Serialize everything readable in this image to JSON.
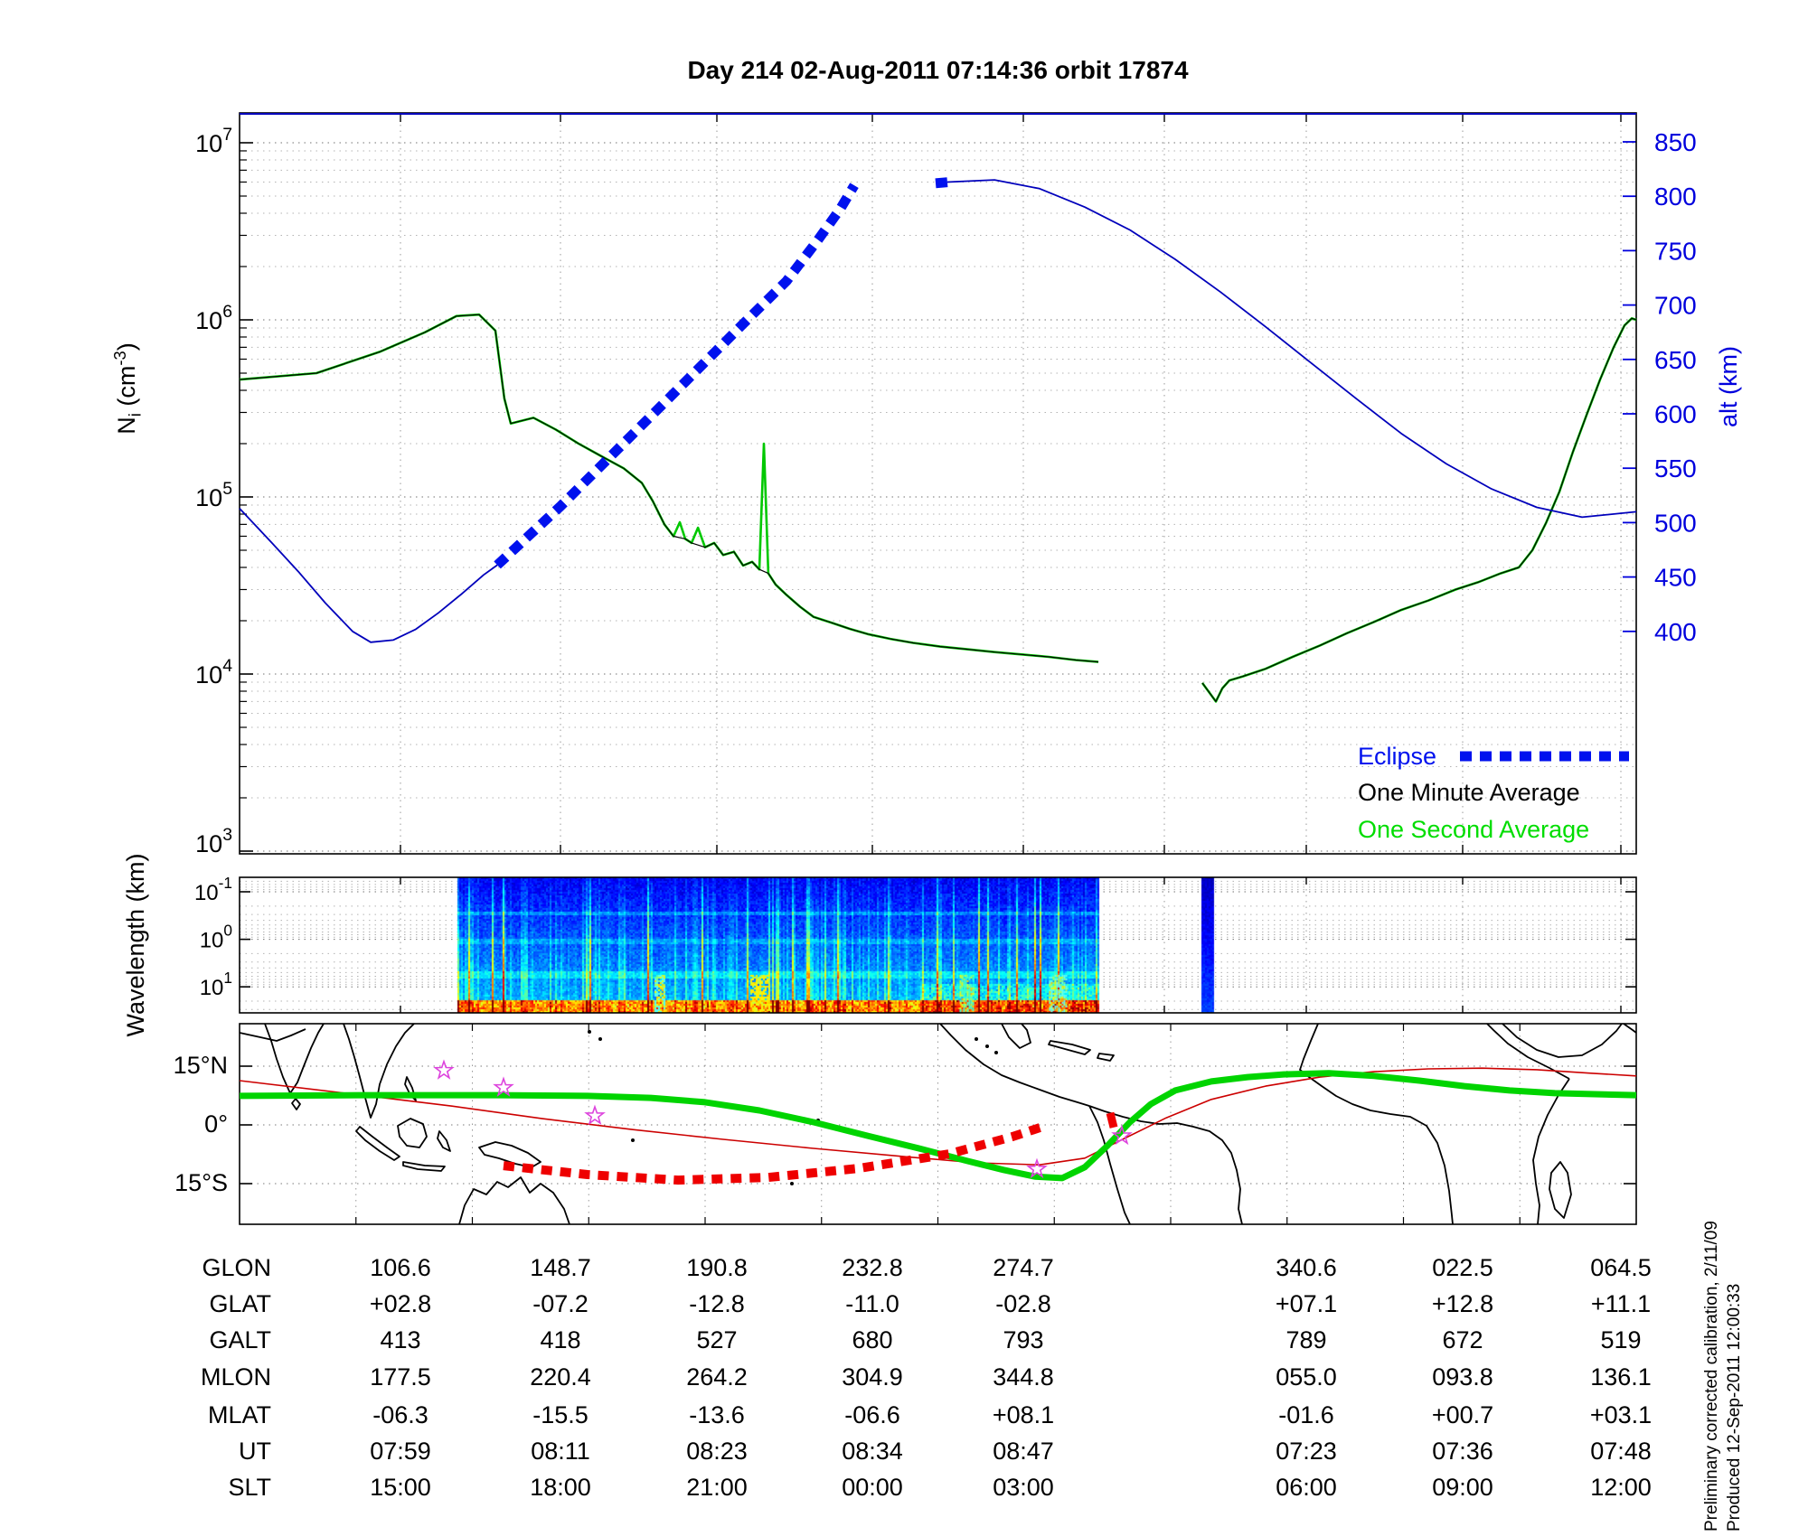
{
  "title": "Day 214  02-Aug-2011 07:14:36   orbit 17874",
  "colors": {
    "one_second_green": "#00c800",
    "one_minute_black": "#000000",
    "altitude_blue": "#0000bb",
    "eclipse_blue": "#0011ee",
    "axis_blue": "#0000dd",
    "track_green": "#00d400",
    "eclipse_track_red": "#ee0000",
    "mag_equator_red": "#cc0000",
    "star_magenta": "#dd44dd",
    "grid_dot": "#444444"
  },
  "legend": {
    "eclipse": "Eclipse",
    "one_minute": "One Minute Average",
    "one_second": "One Second Average"
  },
  "axis_labels": {
    "density": [
      {
        "t": "N"
      },
      {
        "t": "i",
        "sub": true
      },
      {
        "t": " (cm"
      },
      {
        "t": "-3",
        "sup": true
      },
      {
        "t": ")"
      }
    ],
    "altitude": "alt (km)",
    "wavelength": "Wavelength (km)"
  },
  "axis_ticks": {
    "density_exponents": [
      7,
      6,
      5,
      4,
      3
    ],
    "altitude_ticks": [
      850,
      800,
      750,
      700,
      650,
      600,
      550,
      500,
      450,
      400
    ],
    "wavelength_exponents": [
      -1,
      0,
      1
    ]
  },
  "map": {
    "lat_labels": [
      "15°N",
      "0°",
      "15°S"
    ]
  },
  "notes": {
    "line1": "Preliminary corrected calibration, 2/11/09",
    "line2": "Produced 12-Sep-2011 12:00:33"
  },
  "table": {
    "row_labels": [
      "GLON",
      "GLAT",
      "GALT",
      "MLON",
      "MLAT",
      "UT",
      "SLT"
    ],
    "rows": [
      [
        "106.6",
        "148.7",
        "190.8",
        "232.8",
        "274.7",
        "340.6",
        "022.5",
        "064.5"
      ],
      [
        "+02.8",
        "-07.2",
        "-12.8",
        "-11.0",
        "-02.8",
        "+07.1",
        "+12.8",
        "+11.1"
      ],
      [
        "413",
        "418",
        "527",
        "680",
        "793",
        "789",
        "672",
        "519"
      ],
      [
        "177.5",
        "220.4",
        "264.2",
        "304.9",
        "344.8",
        "055.0",
        "093.8",
        "136.1"
      ],
      [
        "-06.3",
        "-15.5",
        "-13.6",
        "-06.6",
        "+08.1",
        "-01.6",
        "+00.7",
        "+03.1"
      ],
      [
        "07:59",
        "08:11",
        "08:23",
        "08:34",
        "08:47",
        "07:23",
        "07:36",
        "07:48"
      ],
      [
        "15:00",
        "18:00",
        "21:00",
        "00:00",
        "03:00",
        "06:00",
        "09:00",
        "12:00"
      ]
    ]
  },
  "chart_data": [
    {
      "type": "line",
      "title": "Day 214  02-Aug-2011 07:14:36   orbit 17874",
      "ylabel_left": "Ni (cm-3)",
      "yscale_left": "log",
      "ylim_left": [
        1000,
        10000000
      ],
      "ylabel_right": "alt (km)",
      "ylim_right": [
        400,
        850
      ],
      "grid": "dotted, major and minor",
      "legend_position": "lower right, no box",
      "series": [
        {
          "name": "One Second Average",
          "axis": "left",
          "color": "#00c800",
          "points": [
            [
              0,
              460000
            ],
            [
              0.055,
              500000
            ],
            [
              0.1003,
              660000
            ],
            [
              0.1327,
              850000
            ],
            [
              0.1553,
              1050000
            ],
            [
              0.1715,
              1070000
            ],
            [
              0.1832,
              870000
            ],
            [
              0.1896,
              360000
            ],
            [
              0.1942,
              260000
            ],
            [
              0.2104,
              280000
            ],
            [
              0.2265,
              240000
            ],
            [
              0.2427,
              200000
            ],
            [
              0.2589,
              170000
            ],
            [
              0.2751,
              145000
            ],
            [
              0.288,
              120000
            ],
            [
              0.2958,
              95000
            ],
            [
              0.3042,
              70000
            ],
            [
              0.3107,
              60000
            ],
            [
              0.3152,
              72000,
              1
            ],
            [
              0.3191,
              58000
            ],
            [
              0.3236,
              55000
            ],
            [
              0.3282,
              67000,
              1
            ],
            [
              0.3333,
              52000
            ],
            [
              0.3398,
              55000
            ],
            [
              0.3463,
              47000
            ],
            [
              0.354,
              49000
            ],
            [
              0.3605,
              41000
            ],
            [
              0.367,
              43000
            ],
            [
              0.3722,
              39000
            ],
            [
              0.3754,
              200000,
              1
            ],
            [
              0.3786,
              37000
            ],
            [
              0.3838,
              32000
            ],
            [
              0.3916,
              28000
            ],
            [
              0.4013,
              24000
            ],
            [
              0.411,
              21000
            ],
            [
              0.4239,
              19500
            ],
            [
              0.4369,
              18000
            ],
            [
              0.4498,
              16800
            ],
            [
              0.466,
              15800
            ],
            [
              0.4822,
              15000
            ],
            [
              0.5016,
              14300
            ],
            [
              0.521,
              13800
            ],
            [
              0.5405,
              13300
            ],
            [
              0.5599,
              12900
            ],
            [
              0.5793,
              12500
            ],
            [
              0.5987,
              12000
            ],
            [
              0.6149,
              11700
            ],
            [
              null,
              null
            ],
            [
              0.6893,
              8900
            ],
            [
              0.699,
              7000
            ],
            [
              0.7036,
              8300
            ],
            [
              0.7087,
              9200
            ],
            [
              0.7184,
              9700
            ],
            [
              0.7346,
              10700
            ],
            [
              0.754,
              12500
            ],
            [
              0.7735,
              14500
            ],
            [
              0.7929,
              17000
            ],
            [
              0.8123,
              19700
            ],
            [
              0.8317,
              23000
            ],
            [
              0.8511,
              26000
            ],
            [
              0.8706,
              30000
            ],
            [
              0.8867,
              33000
            ],
            [
              0.9029,
              37000
            ],
            [
              0.9159,
              40000
            ],
            [
              0.9256,
              50000
            ],
            [
              0.9353,
              71000
            ],
            [
              0.945,
              107000
            ],
            [
              0.9547,
              180000
            ],
            [
              0.9644,
              290000
            ],
            [
              0.9741,
              460000
            ],
            [
              0.9838,
              700000
            ],
            [
              0.9916,
              930000
            ],
            [
              0.9968,
              1020000
            ],
            [
              1,
              1000000
            ]
          ]
        },
        {
          "name": "One Minute Average",
          "axis": "left",
          "color": "#000000",
          "note": "same curve as one-second average without narrow spikes"
        },
        {
          "name": "altitude",
          "axis": "right",
          "color": "#0000bb",
          "segments": [
            [
              [
                0,
                513
              ],
              [
                0.0227,
                482
              ],
              [
                0.0421,
                455
              ],
              [
                0.0615,
                426
              ],
              [
                0.0809,
                400
              ],
              [
                0.0939,
                390
              ],
              [
                0.11,
                392
              ],
              [
                0.1262,
                402
              ],
              [
                0.1424,
                417
              ],
              [
                0.1586,
                434
              ],
              [
                0.1748,
                452
              ],
              [
                0.1845,
                461
              ]
            ],
            [
              [
                0.5068,
                813
              ],
              [
                0.5405,
                815
              ],
              [
                0.5728,
                807
              ],
              [
                0.6052,
                790
              ],
              [
                0.6375,
                769
              ],
              [
                0.6699,
                742
              ],
              [
                0.7023,
                712
              ],
              [
                0.7346,
                680
              ],
              [
                0.767,
                647
              ],
              [
                0.7994,
                614
              ],
              [
                0.8317,
                582
              ],
              [
                0.8641,
                554
              ],
              [
                0.8964,
                531
              ],
              [
                0.9288,
                514
              ],
              [
                0.9612,
                505
              ],
              [
                1,
                510
              ]
            ]
          ]
        },
        {
          "name": "Eclipse",
          "axis": "right",
          "color": "#0011ee",
          "style": "thick dashed",
          "segments": [
            [
              [
                0.1845,
                461
              ],
              [
                0.2298,
                515
              ],
              [
                0.2751,
                573
              ],
              [
                0.3204,
                631
              ],
              [
                0.3592,
                681
              ],
              [
                0.3916,
                722
              ],
              [
                0.4142,
                760
              ],
              [
                0.4304,
                789
              ],
              [
                0.4401,
                810
              ]
            ],
            [
              [
                0.4984,
                812
              ],
              [
                0.5081,
                813
              ]
            ]
          ]
        }
      ]
    },
    {
      "type": "heatmap",
      "ylabel": "Wavelength (km)",
      "yscale": "log inverted",
      "ytick_exponents": [
        -1,
        0,
        1
      ],
      "colormap": "jet (dark blue background, cyan/yellow at long wavelengths)",
      "blocks": [
        {
          "x_start_frac": 0.1553,
          "x_end_frac": 0.6149,
          "description": "broadband irregularity spectrogram; intensity increases toward 10 km wavelengths; bright cyan band along bottom; yellow hot spot near x-frac 0.37"
        },
        {
          "x_start_frac": 0.688,
          "x_end_frac": 0.6971,
          "description": "narrow dark-blue data stripe after gap"
        }
      ],
      "hotspots": [
        {
          "xfrac": 0.372,
          "w_frac": 0.014,
          "color": "#ffee00"
        },
        {
          "xfrac": 0.3,
          "w_frac": 0.008,
          "color": "#55ffee"
        },
        {
          "xfrac": 0.52,
          "w_frac": 0.01,
          "color": "#44ffcc"
        },
        {
          "xfrac": 0.585,
          "w_frac": 0.012,
          "color": "#66ffee"
        }
      ]
    },
    {
      "type": "map",
      "lat_gridlines": [
        15,
        0,
        -15
      ],
      "ground_track_green": [
        [
          0,
          7.4
        ],
        [
          0.0874,
          7.6
        ],
        [
          0.1845,
          7.6
        ],
        [
          0.2492,
          7.4
        ],
        [
          0.2945,
          6.9
        ],
        [
          0.3333,
          5.8
        ],
        [
          0.3722,
          3.7
        ],
        [
          0.411,
          0.7
        ],
        [
          0.4498,
          -2.8
        ],
        [
          0.4887,
          -6.2
        ],
        [
          0.521,
          -9.2
        ],
        [
          0.5469,
          -11.5
        ],
        [
          0.5696,
          -13.2
        ],
        [
          0.589,
          -13.6
        ],
        [
          0.6052,
          -10.8
        ],
        [
          0.6214,
          -5.3
        ],
        [
          0.6375,
          0.7
        ],
        [
          0.6524,
          5.3
        ],
        [
          0.6699,
          8.8
        ],
        [
          0.6958,
          11.1
        ],
        [
          0.7217,
          12.2
        ],
        [
          0.7476,
          12.9
        ],
        [
          0.7799,
          13.2
        ],
        [
          0.8123,
          12.5
        ],
        [
          0.8447,
          11.3
        ],
        [
          0.877,
          9.9
        ],
        [
          0.9094,
          8.8
        ],
        [
          0.9417,
          8.1
        ],
        [
          1,
          7.6
        ]
      ],
      "eclipse_track_red_dashed": [
        [
          0.189,
          -10.4
        ],
        [
          0.2492,
          -12.7
        ],
        [
          0.3139,
          -14.1
        ],
        [
          0.3786,
          -13.4
        ],
        [
          0.4434,
          -11.1
        ],
        [
          0.5081,
          -7.4
        ],
        [
          0.5534,
          -3.0
        ],
        [
          0.5773,
          -0.2
        ]
      ],
      "eclipse_end_dash": [
        0.6246,
        1.2
      ],
      "magnetic_equator_red": [
        [
          0,
          11.3
        ],
        [
          0.0874,
          7.6
        ],
        [
          0.1521,
          4.8
        ],
        [
          0.2168,
          1.6
        ],
        [
          0.2816,
          -1.2
        ],
        [
          0.3463,
          -3.7
        ],
        [
          0.411,
          -6.0
        ],
        [
          0.4757,
          -8.1
        ],
        [
          0.5275,
          -9.7
        ],
        [
          0.5728,
          -10.2
        ],
        [
          0.6052,
          -8.5
        ],
        [
          0.6311,
          -3.9
        ],
        [
          0.6634,
          1.8
        ],
        [
          0.6958,
          6.5
        ],
        [
          0.7346,
          9.9
        ],
        [
          0.7735,
          12.2
        ],
        [
          0.8123,
          13.6
        ],
        [
          0.8511,
          14.3
        ],
        [
          0.8899,
          14.5
        ],
        [
          0.9288,
          14.1
        ],
        [
          0.9676,
          13.2
        ],
        [
          1,
          12.5
        ]
      ],
      "stars": [
        [
          0.1463,
          13.9
        ],
        [
          0.189,
          9.5
        ],
        [
          0.2544,
          2.3
        ],
        [
          0.5709,
          -11.3
        ],
        [
          0.6317,
          -2.8
        ]
      ],
      "coastlines": [
        "M265,1143 L288,1148 L306,1152 L322,1146 L338,1139",
        "M293,1133 L300,1152 L306,1172 L313,1192 L321,1210 L329,1198 L336,1180 L344,1160 L352,1143 L358,1133",
        "M327,1216 L332,1222 L328,1228 L323,1221 Z",
        "M380,1133 L386,1150 L392,1170 L398,1192 L404,1215 L410,1237 L416,1222 L420,1200 L428,1178 L438,1158 L448,1143 L458,1133",
        "M398,1247 L412,1258 L428,1270 L442,1280 L436,1284 L420,1274 L404,1262 L394,1252 Z",
        "M446,1286 L470,1290 L492,1291 L488,1296 L462,1294 L446,1290 Z",
        "M440,1246 L454,1238 L468,1244 L472,1258 L464,1270 L450,1268 L442,1258 Z",
        "M486,1252 L494,1262 L498,1274 L490,1270 L484,1260 Z",
        "M530,1270 L548,1264 L566,1268 L584,1276 L598,1286 L588,1292 L570,1288 L552,1282 L536,1278 Z",
        "M450,1192 L456,1204 L460,1218 L454,1212 L448,1200 Z",
        "M508,1355 L514,1334 L524,1316 L538,1322 L550,1308 L562,1314 L576,1303 L586,1320 L598,1310 L612,1320 L624,1338 L630,1355",
        "M1040,1133 L1052,1146 L1068,1162 L1088,1178 L1108,1190 L1128,1198 L1150,1206 L1172,1214 L1192,1220 L1205,1224",
        "M1108,1133 L1116,1148 L1128,1160 L1140,1154 L1136,1140 L1130,1133",
        "M1162,1152 L1186,1156 L1206,1162 L1200,1167 L1178,1161 L1160,1156 Z",
        "M1216,1166 L1232,1168 L1228,1174 L1214,1171 Z",
        "M1205,1224 L1214,1242 L1221,1262 L1228,1288 L1236,1316 L1244,1342 L1250,1355",
        "M1205,1224 L1222,1230 L1242,1236 L1262,1241 L1282,1244 L1302,1243 L1320,1247 L1338,1252 L1352,1262 L1362,1276 L1368,1295 L1372,1316 L1370,1338 L1374,1355",
        "M1458,1133 L1450,1152 L1442,1172 L1438,1184 L1448,1192 L1462,1202 L1478,1213 L1496,1222 L1516,1229 L1538,1233 L1560,1236 L1578,1246 L1590,1265 L1598,1290 L1603,1318 L1606,1345 L1607,1355",
        "M1736,1194 L1724,1212 L1712,1234 L1702,1258 L1696,1284 L1699,1310 L1703,1334 L1701,1355",
        "M1736,1194 L1714,1182 L1690,1170 L1668,1155 L1652,1140 L1645,1133",
        "M1662,1133 L1678,1148 L1700,1162 L1724,1170 L1750,1168 L1772,1156 L1788,1141 L1794,1133",
        "M1716,1298 L1726,1286 L1734,1298 L1738,1322 L1730,1348 L1720,1338 L1714,1316 Z",
        "M1796,1133 L1806,1140 L1810,1143"
      ],
      "island_dots": [
        [
          652,
          1142
        ],
        [
          664,
          1150
        ],
        [
          858,
          1300
        ],
        [
          876,
          1310
        ],
        [
          1080,
          1150
        ],
        [
          1092,
          1158
        ],
        [
          1102,
          1165
        ],
        [
          700,
          1262
        ],
        [
          905,
          1240
        ]
      ]
    }
  ]
}
